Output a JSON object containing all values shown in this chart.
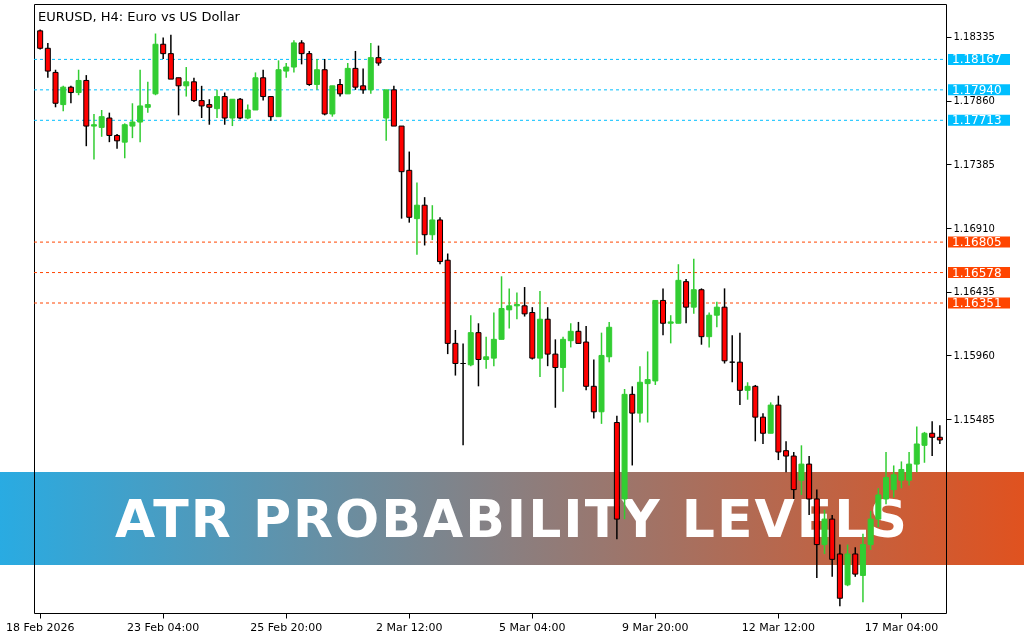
{
  "chart_data": {
    "type": "candlestick",
    "title": "EURUSD, H4: Euro vs US Dollar",
    "categories": [
      "18 Feb 2026",
      null,
      null,
      null,
      null,
      null,
      null,
      null,
      null,
      null,
      null,
      null,
      null,
      null,
      null,
      null,
      "23 Feb 04:00",
      null,
      null,
      null,
      null,
      null,
      null,
      null,
      null,
      null,
      null,
      null,
      null,
      null,
      null,
      null,
      "25 Feb 20:00",
      null,
      null,
      null,
      null,
      null,
      null,
      null,
      null,
      null,
      null,
      null,
      null,
      null,
      null,
      null,
      "2 Mar 12:00",
      null,
      null,
      null,
      null,
      null,
      null,
      null,
      null,
      null,
      null,
      null,
      null,
      null,
      null,
      null,
      "5 Mar 04:00",
      null,
      null,
      null,
      null,
      null,
      null,
      null,
      null,
      null,
      null,
      null,
      null,
      null,
      null,
      null,
      "9 Mar 20:00",
      null,
      null,
      null,
      null,
      null,
      null,
      null,
      null,
      null,
      null,
      null,
      null,
      null,
      null,
      null,
      "12 Mar 12:00",
      null,
      null,
      null,
      null,
      null,
      null,
      null,
      null,
      null,
      null,
      null,
      null,
      null,
      null,
      null,
      "17 Mar 04:00",
      null,
      null,
      null,
      null,
      null
    ],
    "ohlc": [
      [
        1.1838,
        1.1839,
        1.1824,
        1.1825
      ],
      [
        1.1825,
        1.1829,
        1.1803,
        1.1808
      ],
      [
        1.1807,
        1.1809,
        1.1781,
        1.1784
      ],
      [
        1.1783,
        1.1797,
        1.1778,
        1.1796
      ],
      [
        1.1796,
        1.1797,
        1.1784,
        1.1792
      ],
      [
        1.1792,
        1.1809,
        1.179,
        1.1801
      ],
      [
        1.1801,
        1.1805,
        1.1752,
        1.1767
      ],
      [
        1.1767,
        1.1776,
        1.1742,
        1.1768
      ],
      [
        1.1766,
        1.1779,
        1.1759,
        1.1774
      ],
      [
        1.1773,
        1.1777,
        1.1755,
        1.176
      ],
      [
        1.176,
        1.1761,
        1.175,
        1.1756
      ],
      [
        1.1755,
        1.1769,
        1.1743,
        1.1768
      ],
      [
        1.1767,
        1.1784,
        1.1758,
        1.177
      ],
      [
        1.177,
        1.1809,
        1.1755,
        1.1782
      ],
      [
        1.1781,
        1.18,
        1.1777,
        1.1783
      ],
      [
        1.1791,
        1.1836,
        1.179,
        1.1828
      ],
      [
        1.1828,
        1.1833,
        1.1817,
        1.1821
      ],
      [
        1.1821,
        1.1835,
        1.1802,
        1.1802
      ],
      [
        1.1803,
        1.1803,
        1.1775,
        1.1797
      ],
      [
        1.1797,
        1.1811,
        1.1789,
        1.18
      ],
      [
        1.18,
        1.1803,
        1.1785,
        1.1786
      ],
      [
        1.1786,
        1.1797,
        1.1773,
        1.1782
      ],
      [
        1.1783,
        1.1787,
        1.1768,
        1.1781
      ],
      [
        1.178,
        1.1794,
        1.1773,
        1.1789
      ],
      [
        1.1789,
        1.1792,
        1.1768,
        1.1773
      ],
      [
        1.1773,
        1.1787,
        1.1767,
        1.1787
      ],
      [
        1.1787,
        1.1788,
        1.1772,
        1.1773
      ],
      [
        1.1773,
        1.1783,
        1.1772,
        1.1779
      ],
      [
        1.1779,
        1.1807,
        1.1779,
        1.1803
      ],
      [
        1.1803,
        1.1809,
        1.1786,
        1.1789
      ],
      [
        1.1789,
        1.1789,
        1.1771,
        1.1774
      ],
      [
        1.1774,
        1.1816,
        1.1774,
        1.1809
      ],
      [
        1.1808,
        1.1814,
        1.1803,
        1.1811
      ],
      [
        1.1811,
        1.1831,
        1.1807,
        1.1829
      ],
      [
        1.1829,
        1.1831,
        1.1813,
        1.1821
      ],
      [
        1.1821,
        1.1823,
        1.1797,
        1.1798
      ],
      [
        1.1798,
        1.1817,
        1.1794,
        1.1809
      ],
      [
        1.1809,
        1.1817,
        1.1775,
        1.1776
      ],
      [
        1.1776,
        1.1797,
        1.1774,
        1.1797
      ],
      [
        1.1798,
        1.1802,
        1.1789,
        1.1791
      ],
      [
        1.1791,
        1.1814,
        1.1791,
        1.181
      ],
      [
        1.181,
        1.1823,
        1.1794,
        1.1796
      ],
      [
        1.1797,
        1.181,
        1.1791,
        1.1794
      ],
      [
        1.1794,
        1.1829,
        1.1791,
        1.1818
      ],
      [
        1.1818,
        1.1827,
        1.1812,
        1.1814
      ],
      [
        1.1773,
        1.1794,
        1.1756,
        1.1794
      ],
      [
        1.1794,
        1.1797,
        1.1767,
        1.1767
      ],
      [
        1.1767,
        1.1767,
        1.1698,
        1.1733
      ],
      [
        1.1734,
        1.1748,
        1.1695,
        1.1699
      ],
      [
        1.1698,
        1.1725,
        1.1671,
        1.1708
      ],
      [
        1.1708,
        1.1714,
        1.1678,
        1.1686
      ],
      [
        1.1686,
        1.1708,
        1.1682,
        1.1697
      ],
      [
        1.1697,
        1.1699,
        1.1664,
        1.1666
      ],
      [
        1.1667,
        1.1672,
        1.1597,
        1.1605
      ],
      [
        1.1605,
        1.1615,
        1.1581,
        1.159
      ],
      [
        1.159,
        1.1605,
        1.1529,
        1.159
      ],
      [
        1.1589,
        1.1626,
        1.1588,
        1.1613
      ],
      [
        1.1613,
        1.162,
        1.1573,
        1.1593
      ],
      [
        1.1593,
        1.161,
        1.1586,
        1.1595
      ],
      [
        1.1594,
        1.1628,
        1.1588,
        1.1608
      ],
      [
        1.1608,
        1.1655,
        1.1608,
        1.1631
      ],
      [
        1.163,
        1.1646,
        1.1616,
        1.1633
      ],
      [
        1.1633,
        1.1643,
        1.1623,
        1.1634
      ],
      [
        1.1633,
        1.1647,
        1.1625,
        1.1627
      ],
      [
        1.1628,
        1.1632,
        1.1593,
        1.1594
      ],
      [
        1.1594,
        1.1644,
        1.158,
        1.1623
      ],
      [
        1.1623,
        1.1632,
        1.1588,
        1.1597
      ],
      [
        1.1597,
        1.1608,
        1.1557,
        1.1587
      ],
      [
        1.1587,
        1.161,
        1.1569,
        1.1608
      ],
      [
        1.1607,
        1.162,
        1.1602,
        1.1614
      ],
      [
        1.1614,
        1.1621,
        1.1605,
        1.1605
      ],
      [
        1.1606,
        1.1618,
        1.157,
        1.1573
      ],
      [
        1.1573,
        1.1593,
        1.1549,
        1.1554
      ],
      [
        1.1554,
        1.1613,
        1.1545,
        1.1596
      ],
      [
        1.1595,
        1.1621,
        1.1591,
        1.1617
      ],
      [
        1.1546,
        1.1551,
        1.1459,
        1.1474
      ],
      [
        1.1489,
        1.1571,
        1.1474,
        1.1567
      ],
      [
        1.1567,
        1.1573,
        1.1514,
        1.1553
      ],
      [
        1.1553,
        1.1588,
        1.1546,
        1.1576
      ],
      [
        1.1575,
        1.1599,
        1.1546,
        1.1578
      ],
      [
        1.1577,
        1.1637,
        1.1574,
        1.1637
      ],
      [
        1.1637,
        1.1646,
        1.1611,
        1.162
      ],
      [
        1.162,
        1.1626,
        1.1605,
        1.1621
      ],
      [
        1.162,
        1.1664,
        1.162,
        1.1652
      ],
      [
        1.1651,
        1.1653,
        1.162,
        1.1632
      ],
      [
        1.1632,
        1.1668,
        1.1627,
        1.1645
      ],
      [
        1.1645,
        1.1646,
        1.1604,
        1.161
      ],
      [
        1.161,
        1.1628,
        1.1602,
        1.1626
      ],
      [
        1.1626,
        1.1636,
        1.1617,
        1.1632
      ],
      [
        1.1632,
        1.1646,
        1.159,
        1.1592
      ],
      [
        1.1591,
        1.1611,
        1.1576,
        1.1591
      ],
      [
        1.1591,
        1.1613,
        1.1559,
        1.157
      ],
      [
        1.157,
        1.1576,
        1.1563,
        1.1573
      ],
      [
        1.1573,
        1.1574,
        1.1532,
        1.155
      ],
      [
        1.155,
        1.1553,
        1.153,
        1.1538
      ],
      [
        1.1538,
        1.1561,
        1.1538,
        1.1559
      ],
      [
        1.1559,
        1.1566,
        1.1518,
        1.1524
      ],
      [
        1.1525,
        1.1532,
        1.1509,
        1.1521
      ],
      [
        1.1521,
        1.1524,
        1.1489,
        1.1496
      ],
      [
        1.1503,
        1.1529,
        1.1492,
        1.1515
      ],
      [
        1.1515,
        1.1521,
        1.1477,
        1.1489
      ],
      [
        1.1489,
        1.1496,
        1.143,
        1.1455
      ],
      [
        1.1455,
        1.1481,
        1.1448,
        1.1474
      ],
      [
        1.1474,
        1.1477,
        1.1431,
        1.1444
      ],
      [
        1.1448,
        1.1455,
        1.1409,
        1.1415
      ],
      [
        1.1425,
        1.1455,
        1.1424,
        1.1448
      ],
      [
        1.1448,
        1.1453,
        1.1431,
        1.1433
      ],
      [
        1.1432,
        1.1463,
        1.1412,
        1.1455
      ],
      [
        1.1455,
        1.148,
        1.1451,
        1.1474
      ],
      [
        1.1474,
        1.1497,
        1.1468,
        1.1492
      ],
      [
        1.1489,
        1.1524,
        1.1485,
        1.1505
      ],
      [
        1.1496,
        1.1514,
        1.149,
        1.1507
      ],
      [
        1.1503,
        1.1517,
        1.1497,
        1.1511
      ],
      [
        1.1503,
        1.1524,
        1.1499,
        1.1515
      ],
      [
        1.1515,
        1.1543,
        1.1509,
        1.153
      ],
      [
        1.1529,
        1.1539,
        1.1516,
        1.1538
      ],
      [
        1.1538,
        1.1547,
        1.1521,
        1.1535
      ],
      [
        1.1535,
        1.1544,
        1.153,
        1.1533
      ]
    ],
    "colors": [
      "#ff0000",
      "#ff0000",
      "#ff0000",
      "#32cd32",
      "#ff0000",
      "#32cd32",
      "#ff0000",
      "#32cd32",
      "#32cd32",
      "#ff0000",
      "#ff0000",
      "#32cd32",
      "#32cd32",
      "#32cd32",
      "#32cd32",
      "#32cd32",
      "#ff0000",
      "#ff0000",
      "#ff0000",
      "#32cd32",
      "#ff0000",
      "#ff0000",
      "#ff0000",
      "#32cd32",
      "#ff0000",
      "#32cd32",
      "#ff0000",
      "#32cd32",
      "#32cd32",
      "#ff0000",
      "#ff0000",
      "#32cd32",
      "#32cd32",
      "#32cd32",
      "#ff0000",
      "#ff0000",
      "#32cd32",
      "#ff0000",
      "#32cd32",
      "#ff0000",
      "#32cd32",
      "#ff0000",
      "#ff0000",
      "#32cd32",
      "#ff0000",
      "#32cd32",
      "#ff0000",
      "#ff0000",
      "#ff0000",
      "#32cd32",
      "#ff0000",
      "#32cd32",
      "#ff0000",
      "#ff0000",
      "#ff0000",
      "#000000",
      "#32cd32",
      "#ff0000",
      "#32cd32",
      "#32cd32",
      "#32cd32",
      "#32cd32",
      "#32cd32",
      "#ff0000",
      "#ff0000",
      "#32cd32",
      "#ff0000",
      "#ff0000",
      "#32cd32",
      "#32cd32",
      "#ff0000",
      "#ff0000",
      "#ff0000",
      "#32cd32",
      "#32cd32",
      "#ff0000",
      "#32cd32",
      "#ff0000",
      "#32cd32",
      "#32cd32",
      "#32cd32",
      "#ff0000",
      "#32cd32",
      "#32cd32",
      "#ff0000",
      "#32cd32",
      "#ff0000",
      "#32cd32",
      "#32cd32",
      "#ff0000",
      "#000000",
      "#ff0000",
      "#32cd32",
      "#ff0000",
      "#ff0000",
      "#32cd32",
      "#ff0000",
      "#ff0000",
      "#ff0000",
      "#32cd32",
      "#ff0000",
      "#ff0000",
      "#32cd32",
      "#ff0000",
      "#ff0000",
      "#32cd32",
      "#ff0000",
      "#32cd32",
      "#32cd32",
      "#32cd32",
      "#32cd32",
      "#32cd32",
      "#32cd32",
      "#32cd32",
      "#32cd32",
      "#32cd32",
      "#ff0000",
      "#ff0000"
    ],
    "ylim": [
      1.1404,
      1.1858
    ],
    "yticks": [
      1.18335,
      {
        "value": 1.1786,
        "label": "1.17860"
      },
      1.17385,
      {
        "value": 1.1691,
        "label": "1.16910"
      },
      1.16435,
      {
        "value": 1.1596,
        "label": "1.15960"
      },
      1.15485
    ],
    "ref_lines": [
      {
        "axis": "y",
        "value": 1.18167,
        "label": "1.18167",
        "color": "#00bfff",
        "line_style": "dashed"
      },
      {
        "axis": "y",
        "value": 1.1794,
        "label": "1.17940",
        "color": "#00bfff",
        "line_style": "dashed"
      },
      {
        "axis": "y",
        "value": 1.17713,
        "label": "1.17713",
        "color": "#00bfff",
        "line_style": "dashed"
      },
      {
        "axis": "y",
        "value": 1.16805,
        "label": "1.16805",
        "color": "#ff4500",
        "line_style": "dashed"
      },
      {
        "axis": "y",
        "value": 1.16578,
        "label": "1.16578",
        "color": "#ff4500",
        "line_style": "dashed"
      },
      {
        "axis": "y",
        "value": 1.16351,
        "label": "1.16351",
        "color": "#ff4500",
        "line_style": "dashed"
      }
    ],
    "annotations": [
      "ATR PROBABILITY LEVELS"
    ]
  }
}
